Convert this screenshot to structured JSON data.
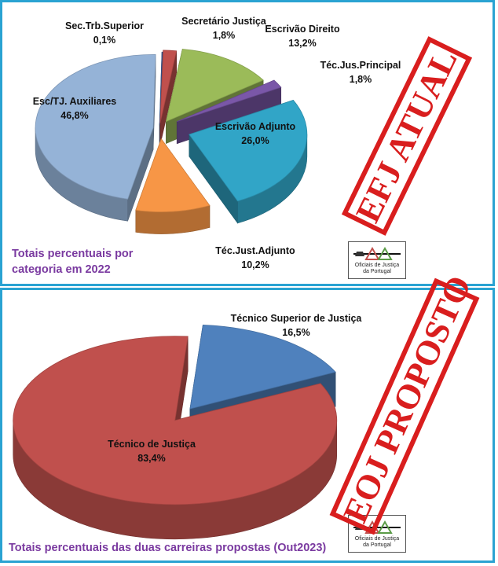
{
  "charts": {
    "top": {
      "caption_line1": "Totais percentuais por",
      "caption_line2": "categoria em 2022"
    },
    "bottom": {
      "caption": "Totais percentuais das duas carreiras propostas (Out2023)"
    }
  },
  "stamps": {
    "current": "EFJ ATUAL",
    "proposed": "EOJ PROPOSTO"
  },
  "logo": {
    "line1": "Oficiais de Justiça",
    "line2": "da Portugal"
  },
  "colors": {
    "frame": "#2aa3d2",
    "caption": "#7a3aa0",
    "stamp": "#d91e1e"
  },
  "chart_data": [
    {
      "type": "pie",
      "title": "Totais percentuais por categoria em 2022",
      "series": [
        {
          "label": "Sec.Trb.Superior",
          "value_label": "0,1%",
          "value": 0.1,
          "color": "#3b5e9b"
        },
        {
          "label": "Secretário Justiça",
          "value_label": "1,8%",
          "value": 1.8,
          "color": "#c0504d"
        },
        {
          "label": "Escrivão Direito",
          "value_label": "13,2%",
          "value": 13.2,
          "color": "#9bbb59"
        },
        {
          "label": "Téc.Jus.Principal",
          "value_label": "1,8%",
          "value": 1.8,
          "color": "#7a57a8"
        },
        {
          "label": "Escrivão Adjunto",
          "value_label": "26,0%",
          "value": 26.0,
          "color": "#31a5c7"
        },
        {
          "label": "Téc.Just.Adjunto",
          "value_label": "10,2%",
          "value": 10.2,
          "color": "#f79646"
        },
        {
          "label": "Esc/TJ. Auxiliares",
          "value_label": "46,8%",
          "value": 46.8,
          "color": "#95b3d7"
        }
      ]
    },
    {
      "type": "pie",
      "title": "Totais percentuais das duas carreiras propostas (Out2023)",
      "series": [
        {
          "label": "Técnico Superior de Justiça",
          "value_label": "16,5%",
          "value": 16.5,
          "color": "#4f81bd"
        },
        {
          "label": "Técnico de Justiça",
          "value_label": "83,4%",
          "value": 83.4,
          "color": "#c0504d"
        }
      ]
    }
  ]
}
